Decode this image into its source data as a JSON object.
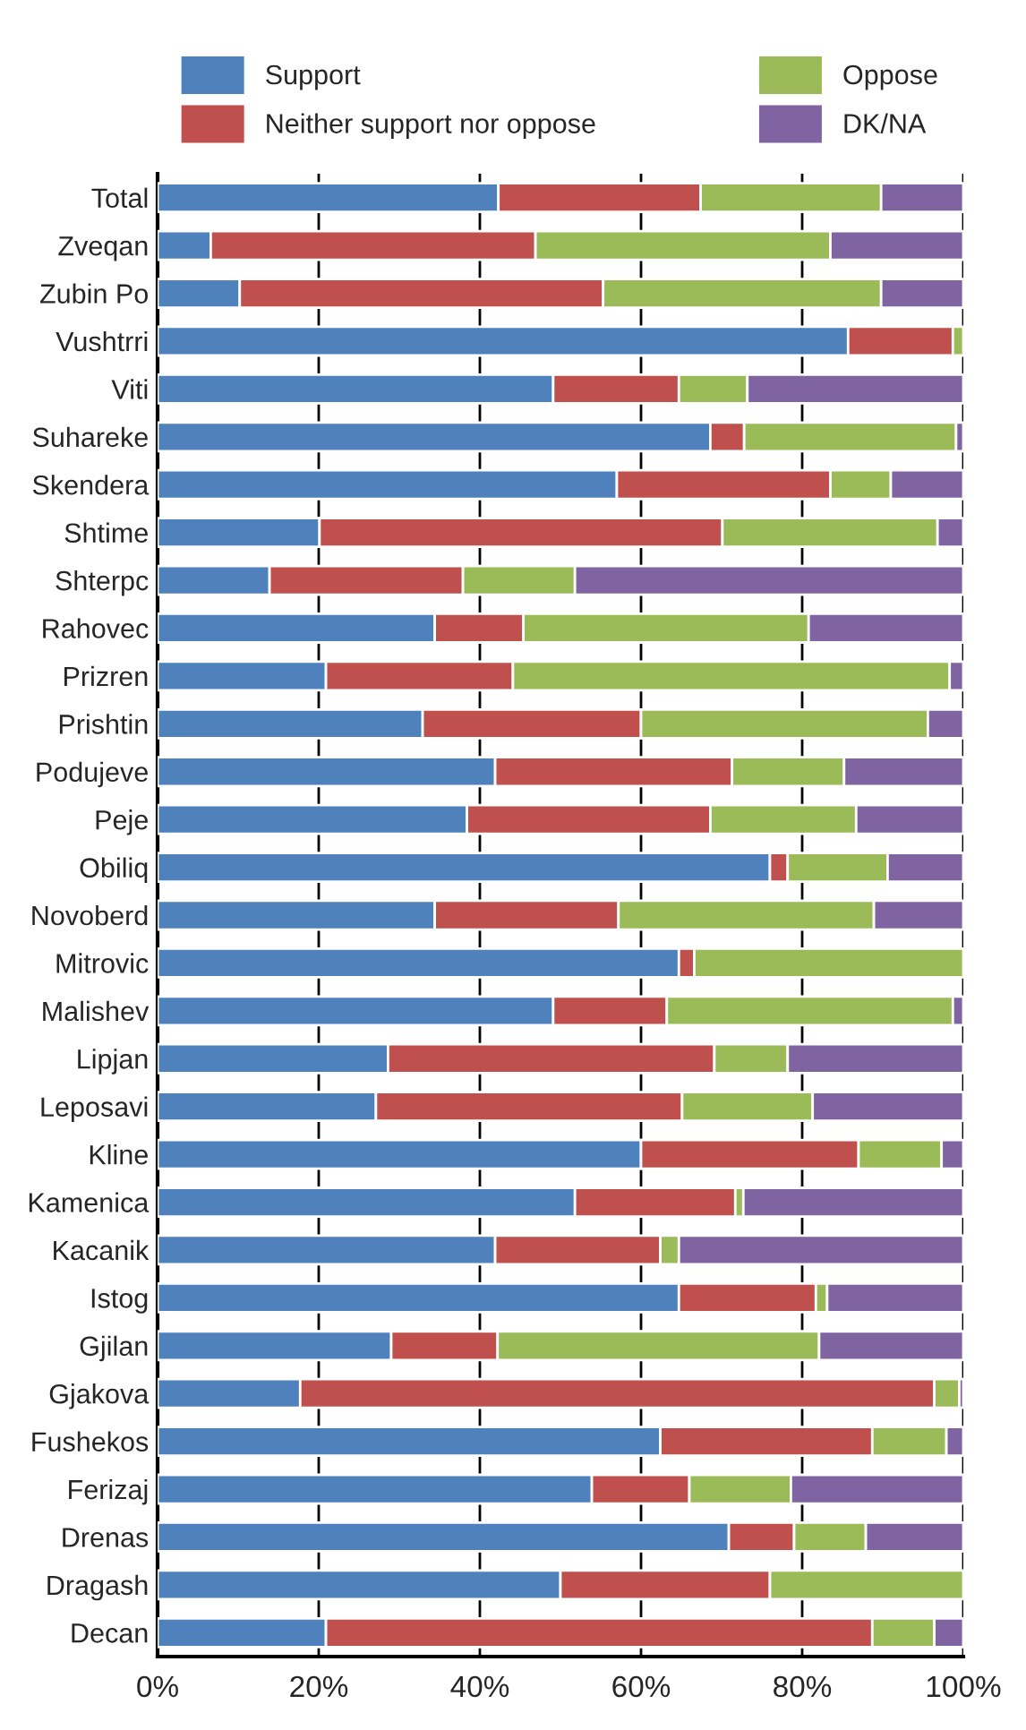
{
  "chart_data": {
    "type": "bar",
    "orientation": "horizontal",
    "stacked": true,
    "categories": [
      "Total",
      "Zveqan",
      "Zubin Po",
      "Vushtrri",
      "Viti",
      "Suhareke",
      "Skendera",
      "Shtime",
      "Shterpc",
      "Rahovec",
      "Prizren",
      "Prishtin",
      "Podujeve",
      "Peje",
      "Obiliq",
      "Novoberd",
      "Mitrovic",
      "Malishev",
      "Lipjan",
      "Leposavi",
      "Kline",
      "Kamenica",
      "Kacanik",
      "Istog",
      "Gjilan",
      "Gjakova",
      "Fushekos",
      "Ferizaj",
      "Drenas",
      "Dragash",
      "Decan"
    ],
    "series": [
      {
        "name": "Support",
        "color": "#4f81bd",
        "values": [
          42.3,
          6.6,
          10.2,
          85.7,
          49.1,
          68.6,
          57.0,
          20.1,
          13.9,
          34.4,
          20.9,
          32.9,
          41.9,
          38.4,
          76.0,
          34.4,
          64.7,
          49.1,
          28.6,
          27.1,
          60.0,
          51.8,
          41.9,
          64.7,
          29.0,
          17.7,
          62.4,
          53.9,
          70.9,
          50.0,
          20.9
        ]
      },
      {
        "name": "Neither support nor oppose",
        "color": "#c0504d",
        "values": [
          25.1,
          40.3,
          45.1,
          13.0,
          15.6,
          4.2,
          26.5,
          50.0,
          24.0,
          11.0,
          23.2,
          27.1,
          29.4,
          30.2,
          2.2,
          22.8,
          1.9,
          14.1,
          40.5,
          38.0,
          27.0,
          19.9,
          20.5,
          17.0,
          13.2,
          78.7,
          26.3,
          12.1,
          8.1,
          26.0,
          67.8
        ]
      },
      {
        "name": "Oppose",
        "color": "#9bbb59",
        "values": [
          22.4,
          36.6,
          34.5,
          1.3,
          8.5,
          26.3,
          7.5,
          26.7,
          13.9,
          35.4,
          54.2,
          35.6,
          13.9,
          18.1,
          12.4,
          31.7,
          33.4,
          35.5,
          9.1,
          16.2,
          10.3,
          1.0,
          2.3,
          1.4,
          39.9,
          3.1,
          9.2,
          12.6,
          8.9,
          24.0,
          7.7
        ]
      },
      {
        "name": "DK/NA",
        "color": "#8064a2",
        "values": [
          10.2,
          16.5,
          10.2,
          null,
          26.8,
          0.9,
          9.0,
          3.2,
          48.2,
          19.2,
          1.7,
          4.4,
          14.8,
          13.3,
          9.4,
          11.1,
          null,
          1.3,
          21.8,
          18.7,
          2.7,
          27.3,
          35.3,
          16.9,
          17.9,
          0.5,
          2.1,
          21.4,
          12.1,
          null,
          3.6
        ]
      }
    ],
    "xlim": [
      0,
      100
    ],
    "xticks": [
      {
        "value": 0,
        "label": "0%"
      },
      {
        "value": 20,
        "label": "20%"
      },
      {
        "value": 40,
        "label": "40%"
      },
      {
        "value": 60,
        "label": "60%"
      },
      {
        "value": 80,
        "label": "80%"
      },
      {
        "value": 100,
        "label": "100%"
      }
    ],
    "grid": "x",
    "legend": "top"
  }
}
